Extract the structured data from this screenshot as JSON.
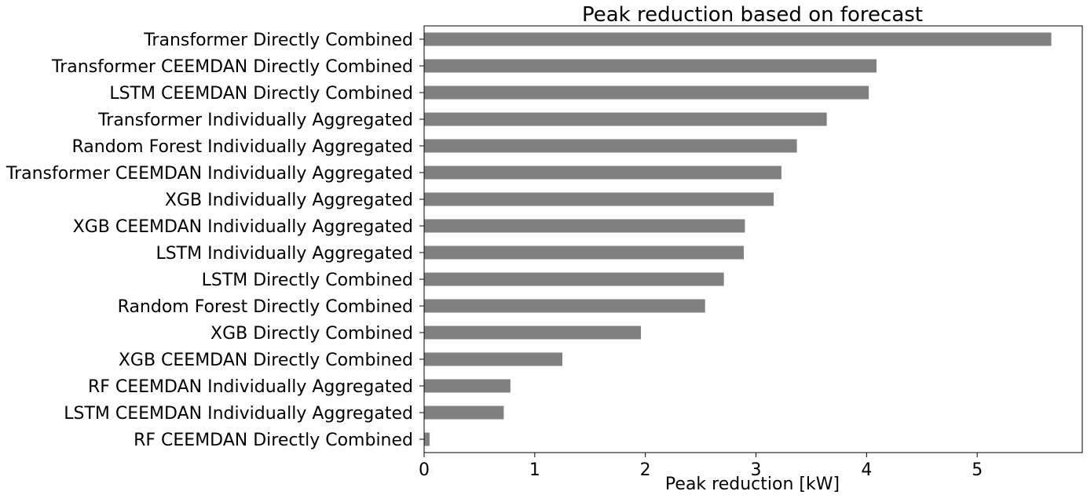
{
  "chart_data": {
    "type": "bar",
    "orientation": "horizontal",
    "title": "Peak reduction based on forecast",
    "xlabel": "Peak reduction [kW]",
    "ylabel": "",
    "xlim": [
      0,
      5.95
    ],
    "xticks": [
      0,
      1,
      2,
      3,
      4,
      5
    ],
    "grid": false,
    "bar_color": "#808080",
    "categories": [
      "Transformer Directly Combined",
      "Transformer CEEMDAN Directly Combined",
      "LSTM CEEMDAN Directly Combined",
      "Transformer Individually Aggregated",
      "Random Forest Individually Aggregated",
      "Transformer CEEMDAN Individually Aggregated",
      "XGB Individually Aggregated",
      "XGB CEEMDAN Individually Aggregated",
      "LSTM Individually Aggregated",
      "LSTM Directly Combined",
      "Random Forest Directly Combined",
      "XGB Directly Combined",
      "XGB CEEMDAN Directly Combined",
      "RF CEEMDAN Individually Aggregated",
      "LSTM CEEMDAN Individually Aggregated",
      "RF CEEMDAN Directly Combined"
    ],
    "values": [
      5.67,
      4.09,
      4.02,
      3.64,
      3.37,
      3.23,
      3.16,
      2.9,
      2.89,
      2.71,
      2.54,
      1.96,
      1.25,
      0.78,
      0.72,
      0.05
    ]
  }
}
